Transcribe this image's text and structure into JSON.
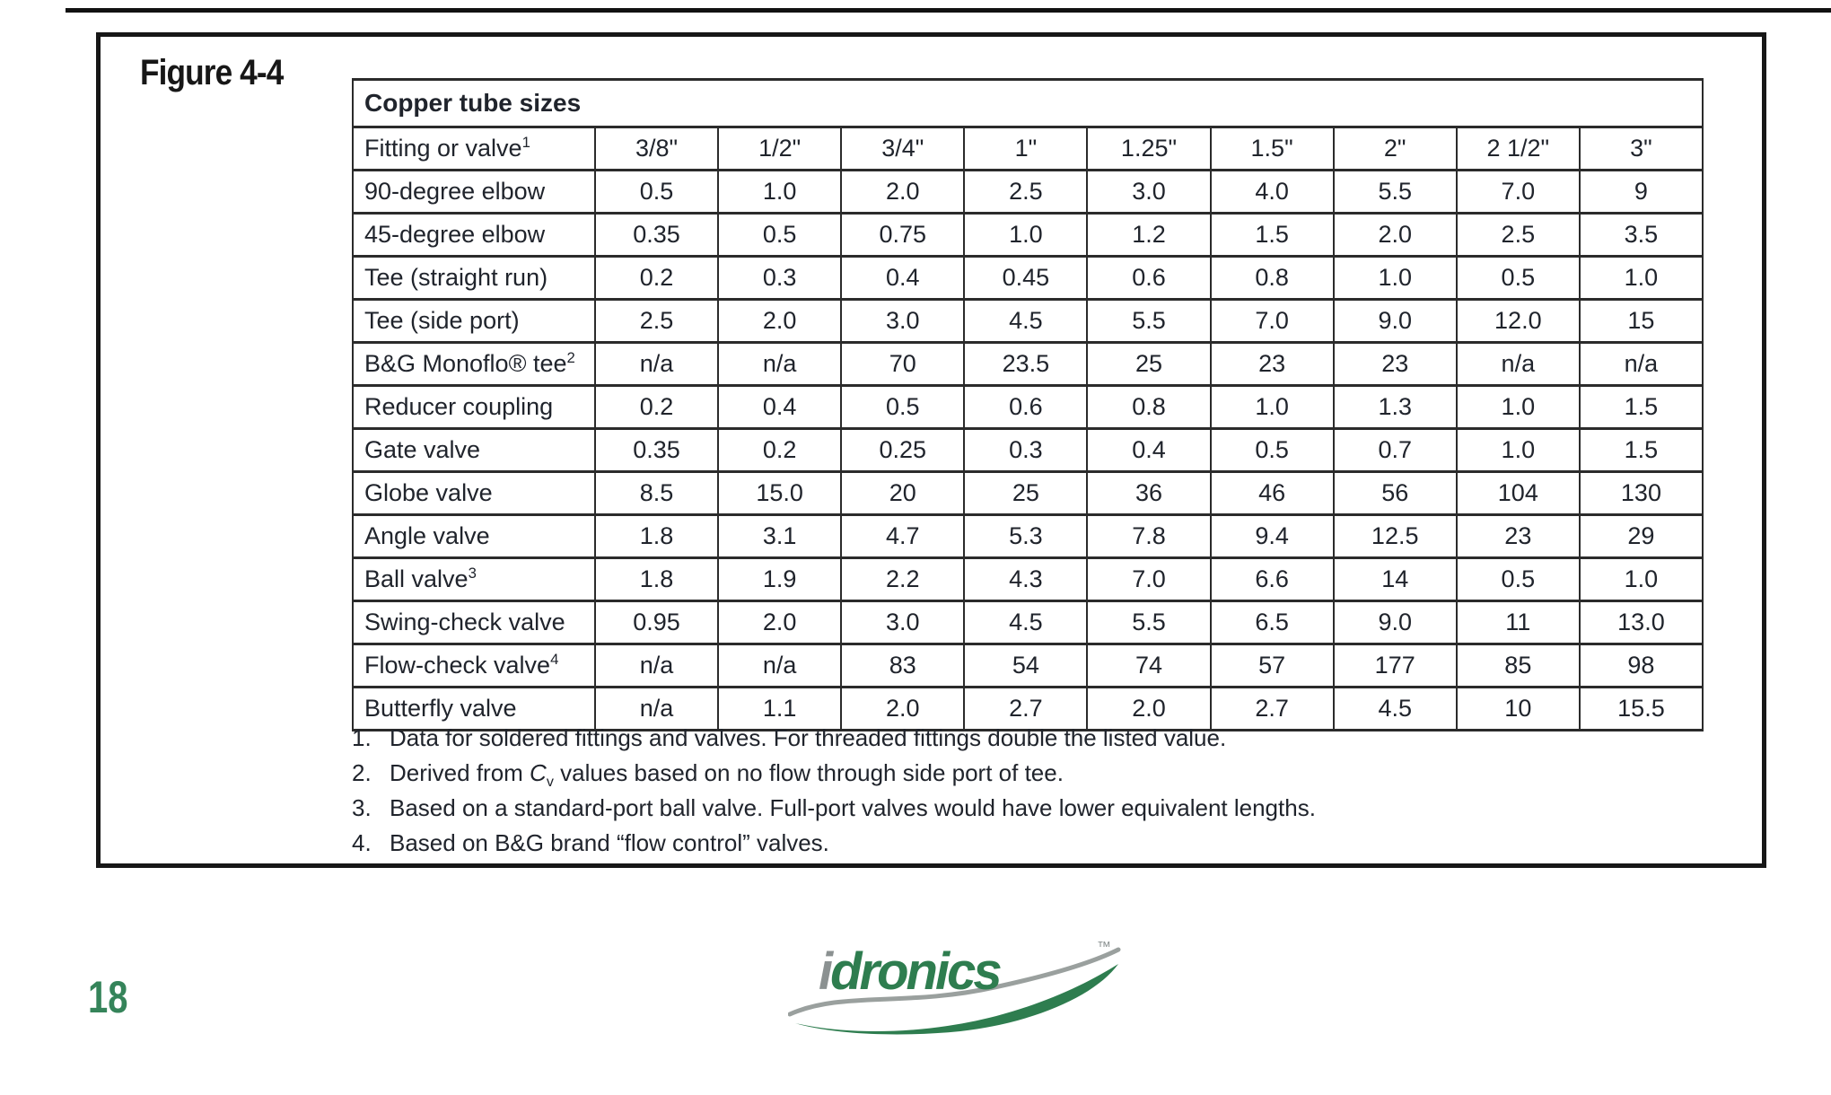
{
  "figure_label": "Figure 4-4",
  "page_number": "18",
  "table": {
    "title": "Copper tube sizes",
    "header": {
      "label": "Fitting or valve",
      "label_sup": "1",
      "sizes": [
        "3/8\"",
        "1/2\"",
        "3/4\"",
        "1\"",
        "1.25\"",
        "1.5\"",
        "2\"",
        "2 1/2\"",
        "3\""
      ]
    },
    "rows": [
      {
        "label": "90-degree elbow",
        "sup": "",
        "values": [
          "0.5",
          "1.0",
          "2.0",
          "2.5",
          "3.0",
          "4.0",
          "5.5",
          "7.0",
          "9"
        ]
      },
      {
        "label": "45-degree elbow",
        "sup": "",
        "values": [
          "0.35",
          "0.5",
          "0.75",
          "1.0",
          "1.2",
          "1.5",
          "2.0",
          "2.5",
          "3.5"
        ]
      },
      {
        "label": "Tee (straight run)",
        "sup": "",
        "values": [
          "0.2",
          "0.3",
          "0.4",
          "0.45",
          "0.6",
          "0.8",
          "1.0",
          "0.5",
          "1.0"
        ]
      },
      {
        "label": "Tee (side port)",
        "sup": "",
        "values": [
          "2.5",
          "2.0",
          "3.0",
          "4.5",
          "5.5",
          "7.0",
          "9.0",
          "12.0",
          "15"
        ]
      },
      {
        "label": "B&G Monoflo® tee",
        "sup": "2",
        "values": [
          "n/a",
          "n/a",
          "70",
          "23.5",
          "25",
          "23",
          "23",
          "n/a",
          "n/a"
        ]
      },
      {
        "label": "Reducer coupling",
        "sup": "",
        "values": [
          "0.2",
          "0.4",
          "0.5",
          "0.6",
          "0.8",
          "1.0",
          "1.3",
          "1.0",
          "1.5"
        ]
      },
      {
        "label": "Gate valve",
        "sup": "",
        "values": [
          "0.35",
          "0.2",
          "0.25",
          "0.3",
          "0.4",
          "0.5",
          "0.7",
          "1.0",
          "1.5"
        ]
      },
      {
        "label": "Globe valve",
        "sup": "",
        "values": [
          "8.5",
          "15.0",
          "20",
          "25",
          "36",
          "46",
          "56",
          "104",
          "130"
        ]
      },
      {
        "label": "Angle valve",
        "sup": "",
        "values": [
          "1.8",
          "3.1",
          "4.7",
          "5.3",
          "7.8",
          "9.4",
          "12.5",
          "23",
          "29"
        ]
      },
      {
        "label": "Ball valve",
        "sup": "3",
        "values": [
          "1.8",
          "1.9",
          "2.2",
          "4.3",
          "7.0",
          "6.6",
          "14",
          "0.5",
          "1.0"
        ]
      },
      {
        "label": "Swing-check valve",
        "sup": "",
        "values": [
          "0.95",
          "2.0",
          "3.0",
          "4.5",
          "5.5",
          "6.5",
          "9.0",
          "11",
          "13.0"
        ]
      },
      {
        "label": "Flow-check valve",
        "sup": "4",
        "values": [
          "n/a",
          "n/a",
          "83",
          "54",
          "74",
          "57",
          "177",
          "85",
          "98"
        ]
      },
      {
        "label": "Butterfly valve",
        "sup": "",
        "values": [
          "n/a",
          "1.1",
          "2.0",
          "2.7",
          "2.0",
          "2.7",
          "4.5",
          "10",
          "15.5"
        ]
      }
    ]
  },
  "footnotes": [
    {
      "num": "1.",
      "segments": [
        {
          "t": "Data for soldered fittings and valves. For threaded fittings double the listed value."
        }
      ]
    },
    {
      "num": "2.",
      "segments": [
        {
          "t": "Derived from "
        },
        {
          "var": "C"
        },
        {
          "sub": "v"
        },
        {
          "t": " values based on no flow through side port of tee."
        }
      ]
    },
    {
      "num": "3.",
      "segments": [
        {
          "t": "Based on a standard-port ball valve. Full-port valves would have lower equivalent lengths."
        }
      ]
    },
    {
      "num": "4.",
      "segments": [
        {
          "t": "Based on B&G brand “flow control” valves."
        }
      ]
    }
  ],
  "logo": {
    "text_i": "i",
    "text_rest": "dronics",
    "tm": "™"
  },
  "colors": {
    "logo_green": "#2E7D4F",
    "page_number_green": "#35845A",
    "logo_gray": "#8B9191",
    "ink": "#1D1D1F"
  }
}
